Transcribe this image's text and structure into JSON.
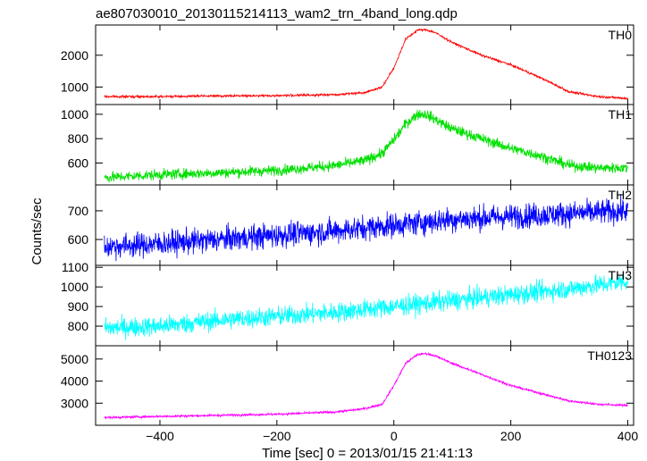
{
  "chart_data": {
    "type": "line",
    "title": "ae807030010_20130115214113_wam2_trn_4band_long.qdp",
    "xlabel": "Time [sec] 0 = 2013/01/15 21:41:13",
    "ylabel": "Counts/sec",
    "xlim": [
      -510,
      410
    ],
    "xticks": [
      -400,
      -200,
      0,
      200,
      400
    ],
    "xtick_labels": [
      "−400",
      "−200",
      "0",
      "200",
      "400"
    ],
    "panels": [
      {
        "name": "TH0",
        "color": "#ff0000",
        "ylim": [
          450,
          2950
        ],
        "yticks": [
          1000,
          2000
        ],
        "ytick_labels": [
          "1000",
          "2000"
        ],
        "noise": 25,
        "x": [
          -495,
          -400,
          -300,
          -200,
          -100,
          -50,
          -20,
          0,
          20,
          40,
          55,
          70,
          100,
          150,
          200,
          250,
          300,
          350,
          400
        ],
        "y": [
          700,
          700,
          720,
          730,
          760,
          830,
          1000,
          1600,
          2500,
          2790,
          2800,
          2720,
          2400,
          2000,
          1700,
          1300,
          850,
          700,
          640
        ]
      },
      {
        "name": "TH1",
        "color": "#00e000",
        "ylim": [
          420,
          1080
        ],
        "yticks": [
          600,
          800,
          1000
        ],
        "ytick_labels": [
          "600",
          "800",
          "1000"
        ],
        "noise": 30,
        "x": [
          -495,
          -400,
          -300,
          -200,
          -100,
          -50,
          -20,
          0,
          20,
          40,
          55,
          70,
          100,
          150,
          200,
          250,
          300,
          350,
          400
        ],
        "y": [
          480,
          505,
          520,
          540,
          580,
          620,
          680,
          790,
          920,
          1000,
          1000,
          960,
          880,
          800,
          720,
          660,
          580,
          560,
          560
        ]
      },
      {
        "name": "TH2",
        "color": "#0000ff",
        "ylim": [
          510,
          790
        ],
        "yticks": [
          600,
          700
        ],
        "ytick_labels": [
          "600",
          "700"
        ],
        "noise": 30,
        "x": [
          -495,
          -400,
          -300,
          -200,
          -100,
          0,
          100,
          200,
          300,
          400
        ],
        "y": [
          575,
          585,
          600,
          615,
          630,
          650,
          670,
          680,
          690,
          700
        ]
      },
      {
        "name": "TH3",
        "color": "#00ffff",
        "ylim": [
          700,
          1110
        ],
        "yticks": [
          800,
          900,
          1000,
          1100
        ],
        "ytick_labels": [
          "800",
          "900",
          "1000",
          "1100"
        ],
        "noise": 35,
        "x": [
          -495,
          -400,
          -300,
          -200,
          -100,
          0,
          100,
          200,
          300,
          400
        ],
        "y": [
          790,
          800,
          830,
          850,
          870,
          900,
          930,
          960,
          990,
          1030
        ]
      },
      {
        "name": "TH0123",
        "color": "#ff00ff",
        "ylim": [
          2000,
          5600
        ],
        "yticks": [
          3000,
          4000,
          5000
        ],
        "ytick_labels": [
          "3000",
          "4000",
          "5000"
        ],
        "noise": 35,
        "x": [
          -495,
          -400,
          -300,
          -200,
          -100,
          -50,
          -20,
          0,
          20,
          40,
          55,
          70,
          100,
          150,
          200,
          250,
          300,
          350,
          400
        ],
        "y": [
          2350,
          2400,
          2450,
          2500,
          2600,
          2750,
          2950,
          3800,
          4800,
          5200,
          5250,
          5150,
          4800,
          4300,
          3800,
          3450,
          3100,
          2950,
          2900
        ]
      }
    ]
  }
}
